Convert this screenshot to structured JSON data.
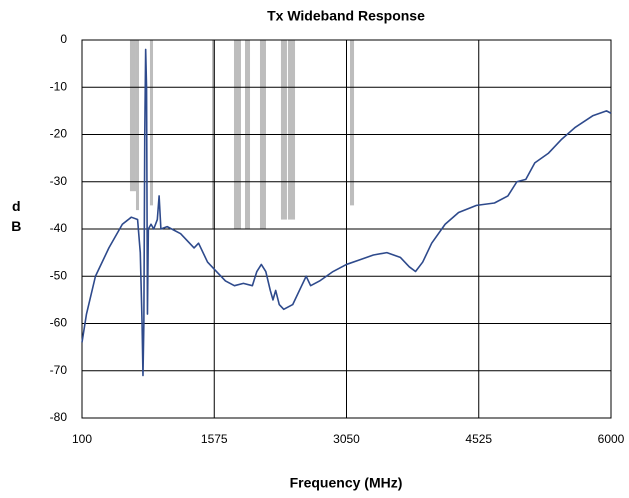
{
  "chart_data": {
    "type": "line",
    "title": "Tx Wideband Response",
    "xlabel": "Frequency (MHz)",
    "ylabel": "dB",
    "xlim": [
      100,
      6000
    ],
    "ylim": [
      -80,
      0
    ],
    "xticks": [
      100,
      1575,
      3050,
      4525,
      6000
    ],
    "yticks": [
      0,
      -10,
      -20,
      -30,
      -40,
      -50,
      -60,
      -70,
      -80
    ],
    "grid": true,
    "bands": {
      "color": "#bdbdbd",
      "x_start": [
        635,
        702,
        858,
        1550,
        1795,
        1918,
        2085,
        2319,
        2397,
        3089
      ],
      "x_end": [
        702,
        736,
        892,
        1583,
        1873,
        1974,
        2152,
        2386,
        2476,
        3134
      ],
      "values": [
        -32,
        -36,
        -35,
        -40,
        -40,
        -40,
        -40,
        -38,
        -38,
        -35
      ]
    },
    "series": [
      {
        "name": "Tx",
        "color": "#2e4a8c",
        "x": [
          100,
          150,
          250,
          400,
          550,
          650,
          720,
          750,
          770,
          780,
          790,
          800,
          810,
          820,
          830,
          840,
          870,
          900,
          940,
          960,
          980,
          1050,
          1200,
          1350,
          1400,
          1500,
          1600,
          1700,
          1800,
          1900,
          2000,
          2050,
          2100,
          2150,
          2200,
          2230,
          2260,
          2300,
          2350,
          2450,
          2550,
          2600,
          2650,
          2750,
          2900,
          3050,
          3200,
          3350,
          3500,
          3650,
          3750,
          3820,
          3900,
          4000,
          4150,
          4300,
          4500,
          4700,
          4850,
          4950,
          5050,
          5150,
          5300,
          5450,
          5600,
          5800,
          5950,
          6000
        ],
        "values": [
          -64,
          -58,
          -50,
          -44,
          -39,
          -37.5,
          -38,
          -45,
          -60,
          -71,
          -60,
          -20,
          -2,
          -10,
          -58,
          -40,
          -39,
          -40,
          -38,
          -33,
          -40,
          -39.5,
          -41,
          -44,
          -43,
          -47,
          -49,
          -51,
          -52,
          -51.5,
          -52,
          -49,
          -47.5,
          -49,
          -53,
          -55,
          -53,
          -56,
          -57,
          -56,
          -52,
          -50,
          -52,
          -51,
          -49,
          -47.5,
          -46.5,
          -45.5,
          -45,
          -46,
          -48,
          -49,
          -47,
          -43,
          -39,
          -36.5,
          -35,
          -34.5,
          -33,
          -30,
          -29.5,
          -26,
          -24,
          -21,
          -18.5,
          -16,
          -15,
          -15.5
        ]
      }
    ]
  }
}
